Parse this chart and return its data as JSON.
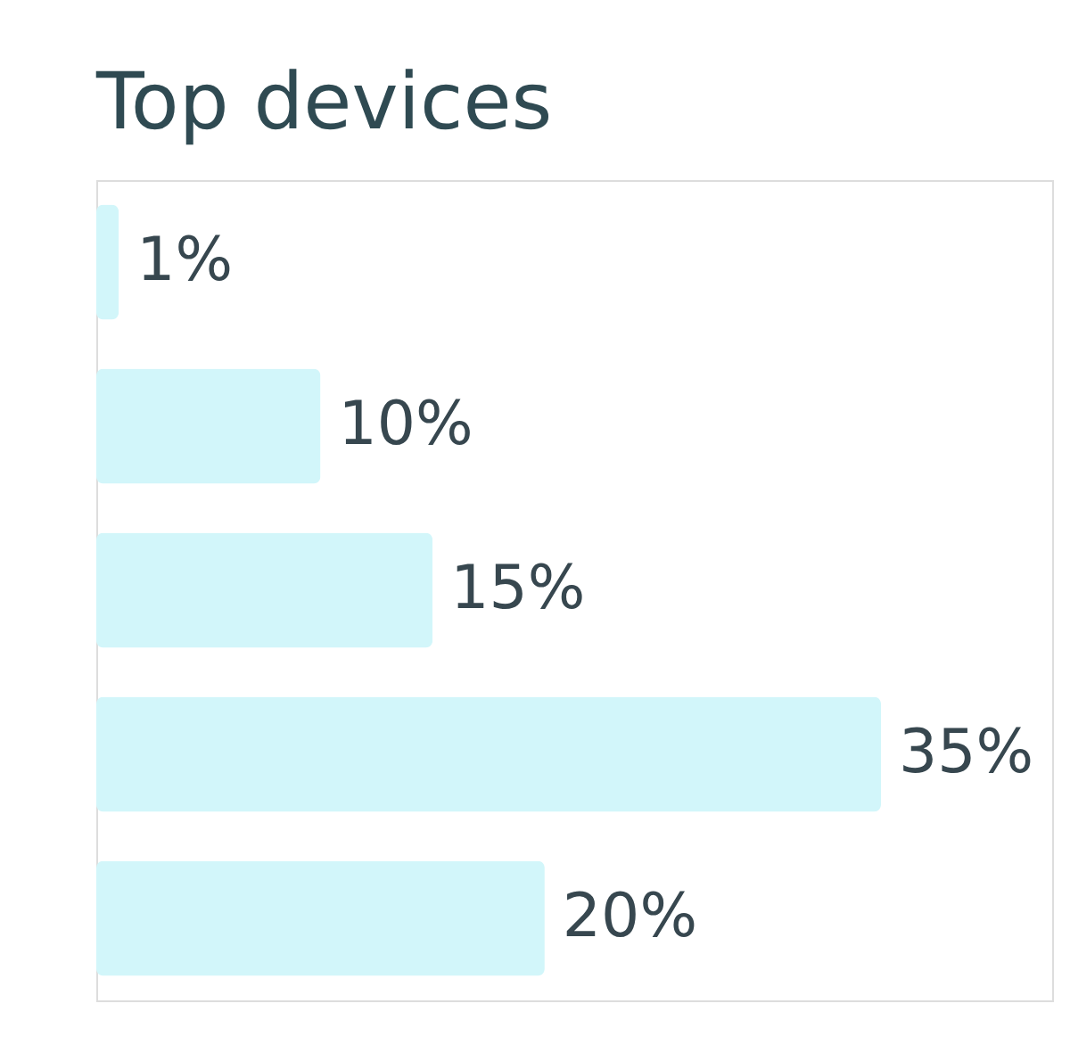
{
  "chart_data": {
    "type": "bar",
    "orientation": "horizontal",
    "title": "Top devices",
    "categories": [
      null,
      null,
      null,
      null,
      null
    ],
    "values": [
      1,
      10,
      15,
      35,
      20
    ],
    "value_labels": [
      "1%",
      "10%",
      "15%",
      "35%",
      "20%"
    ],
    "color": "#d2f6fa",
    "tick_labels": false
  }
}
